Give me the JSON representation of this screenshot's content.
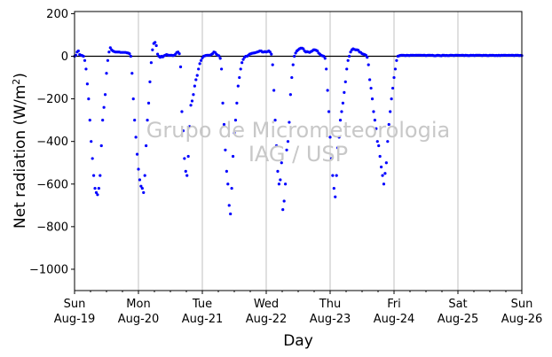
{
  "chart_data": {
    "type": "scatter",
    "title": "",
    "xlabel": "Day",
    "ylabel_main": "Net radiation (W/m",
    "ylabel_sup": "2",
    "ylabel_close": ")",
    "ylim": [
      -1100,
      210
    ],
    "xlim": [
      0,
      7
    ],
    "y_ticks": [
      200,
      0,
      -200,
      -400,
      -600,
      -800,
      -1000
    ],
    "y_tick_labels": [
      "200",
      "0",
      "−200",
      "−400",
      "−600",
      "−800",
      "−1000"
    ],
    "x_ticks": [
      {
        "x": 0,
        "day": "Sun",
        "date": "Aug-19"
      },
      {
        "x": 1,
        "day": "Mon",
        "date": "Aug-20"
      },
      {
        "x": 2,
        "day": "Tue",
        "date": "Aug-21"
      },
      {
        "x": 3,
        "day": "Wed",
        "date": "Aug-22"
      },
      {
        "x": 4,
        "day": "Thu",
        "date": "Aug-23"
      },
      {
        "x": 5,
        "day": "Fri",
        "date": "Aug-24"
      },
      {
        "x": 6,
        "day": "Sat",
        "date": "Aug-25"
      },
      {
        "x": 7,
        "day": "Sun",
        "date": "Aug-26"
      }
    ],
    "grid": "vertical",
    "zero_line": 0,
    "watermark": [
      "Grupo de Micrometeorologia",
      "IAG / USP"
    ],
    "marker_color": "#0000ff",
    "series": [
      {
        "x": [
          0.0,
          0.02,
          0.04,
          0.06,
          0.08,
          0.1,
          0.12,
          0.14,
          0.16,
          0.18,
          0.2,
          0.22,
          0.24,
          0.26,
          0.28,
          0.3,
          0.32,
          0.34,
          0.36,
          0.38,
          0.4,
          0.42,
          0.44,
          0.46,
          0.48,
          0.5,
          0.52,
          0.54,
          0.56,
          0.58,
          0.6,
          0.62,
          0.64,
          0.66,
          0.68,
          0.7,
          0.72,
          0.74,
          0.76,
          0.78,
          0.8,
          0.82,
          0.84,
          0.86,
          0.88,
          0.9,
          0.92,
          0.94,
          0.96,
          0.98,
          1.0,
          1.02,
          1.04,
          1.06,
          1.08,
          1.1,
          1.12,
          1.14,
          1.16,
          1.18,
          1.2,
          1.22,
          1.24,
          1.26,
          1.28,
          1.3,
          1.32,
          1.34,
          1.36,
          1.38,
          1.4,
          1.42,
          1.44,
          1.46,
          1.48,
          1.5,
          1.52,
          1.54,
          1.56,
          1.58,
          1.6,
          1.62,
          1.64,
          1.66,
          1.68,
          1.7,
          1.72,
          1.74,
          1.76,
          1.78,
          1.8,
          1.82,
          1.84,
          1.86,
          1.88,
          1.9,
          1.92,
          1.94,
          1.96,
          1.98,
          2.0,
          2.02,
          2.04,
          2.06,
          2.08,
          2.1,
          2.12,
          2.14,
          2.16,
          2.18,
          2.2,
          2.22,
          2.24,
          2.26,
          2.28,
          2.3,
          2.32,
          2.34,
          2.36,
          2.38,
          2.4,
          2.42,
          2.44,
          2.46,
          2.48,
          2.5,
          2.52,
          2.54,
          2.56,
          2.58,
          2.6,
          2.62,
          2.64,
          2.66,
          2.68,
          2.7,
          2.72,
          2.74,
          2.76,
          2.78,
          2.8,
          2.82,
          2.84,
          2.86,
          2.88,
          2.9,
          2.92,
          2.94,
          2.96,
          2.98,
          3.0,
          3.02,
          3.04,
          3.06,
          3.08,
          3.1,
          3.12,
          3.14,
          3.16,
          3.18,
          3.2,
          3.22,
          3.24,
          3.26,
          3.28,
          3.3,
          3.32,
          3.34,
          3.36,
          3.38,
          3.4,
          3.42,
          3.44,
          3.46,
          3.48,
          3.5,
          3.52,
          3.54,
          3.56,
          3.58,
          3.6,
          3.62,
          3.64,
          3.66,
          3.68,
          3.7,
          3.72,
          3.74,
          3.76,
          3.78,
          3.8,
          3.82,
          3.84,
          3.86,
          3.88,
          3.9,
          3.92,
          3.94,
          3.96,
          3.98,
          4.0,
          4.02,
          4.04,
          4.06,
          4.08,
          4.1,
          4.12,
          4.14,
          4.16,
          4.18,
          4.2,
          4.22,
          4.24,
          4.26,
          4.28,
          4.3,
          4.32,
          4.34,
          4.36,
          4.38,
          4.4,
          4.42,
          4.44,
          4.46,
          4.48,
          4.5,
          4.52,
          4.54,
          4.56,
          4.58,
          4.6,
          4.62,
          4.64,
          4.66,
          4.68,
          4.7,
          4.72,
          4.74,
          4.76,
          4.78,
          4.8,
          4.82,
          4.84,
          4.86,
          4.88,
          4.9,
          4.92,
          4.94,
          4.96,
          4.98,
          5.0,
          5.02,
          5.04,
          5.06,
          5.08,
          5.1,
          5.12,
          5.14,
          5.16,
          5.18,
          5.2,
          5.22,
          5.24,
          5.26,
          5.28,
          5.3,
          5.32,
          5.34,
          5.36,
          5.38,
          5.4,
          5.42,
          5.44,
          5.46,
          5.48,
          5.5,
          5.52,
          5.54,
          5.56,
          5.58,
          5.6,
          5.62,
          5.64,
          5.66,
          5.68,
          5.7,
          5.72,
          5.74,
          5.76,
          5.78,
          5.8,
          5.82,
          5.84,
          5.86,
          5.88,
          5.9,
          5.92,
          5.94,
          5.96,
          5.98,
          6.0,
          6.02,
          6.04,
          6.06,
          6.08,
          6.1,
          6.12,
          6.14,
          6.16,
          6.18,
          6.2,
          6.22,
          6.24,
          6.26,
          6.28,
          6.3,
          6.32,
          6.34,
          6.36,
          6.38,
          6.4,
          6.42,
          6.44,
          6.46,
          6.48,
          6.5,
          6.52,
          6.54,
          6.56,
          6.58,
          6.6,
          6.62,
          6.64,
          6.66,
          6.68,
          6.7,
          6.72,
          6.74,
          6.76,
          6.78,
          6.8,
          6.82,
          6.84,
          6.86,
          6.88,
          6.9,
          6.92,
          6.94,
          6.96,
          6.98,
          7.0
        ],
        "y": [
          0,
          5,
          20,
          25,
          8,
          5,
          3,
          0,
          -20,
          -60,
          -130,
          -200,
          -300,
          -400,
          -480,
          -560,
          -620,
          -640,
          -650,
          -620,
          -560,
          -420,
          -300,
          -240,
          -180,
          -80,
          -20,
          20,
          40,
          30,
          25,
          22,
          20,
          20,
          20,
          20,
          18,
          18,
          18,
          18,
          18,
          16,
          15,
          12,
          0,
          -80,
          -200,
          -300,
          -380,
          -460,
          -530,
          -580,
          -610,
          -620,
          -640,
          -560,
          -420,
          -300,
          -220,
          -120,
          -30,
          30,
          60,
          65,
          50,
          10,
          0,
          -5,
          0,
          -3,
          2,
          5,
          8,
          6,
          4,
          5,
          5,
          3,
          5,
          10,
          18,
          20,
          12,
          -50,
          -260,
          -350,
          -480,
          -540,
          -560,
          -470,
          -330,
          -230,
          -210,
          -180,
          -140,
          -110,
          -90,
          -60,
          -35,
          -20,
          -8,
          0,
          2,
          4,
          5,
          5,
          5,
          8,
          12,
          20,
          18,
          10,
          5,
          2,
          -10,
          -60,
          -220,
          -320,
          -440,
          -540,
          -600,
          -700,
          -740,
          -620,
          -470,
          -360,
          -300,
          -220,
          -140,
          -100,
          -60,
          -30,
          -15,
          -5,
          0,
          0,
          5,
          10,
          12,
          14,
          15,
          16,
          18,
          20,
          22,
          25,
          25,
          20,
          20,
          22,
          20,
          22,
          25,
          20,
          10,
          -40,
          -160,
          -300,
          -420,
          -540,
          -600,
          -580,
          -500,
          -720,
          -680,
          -600,
          -440,
          -400,
          -310,
          -180,
          -100,
          -40,
          0,
          15,
          25,
          30,
          35,
          38,
          38,
          35,
          25,
          20,
          22,
          20,
          18,
          22,
          25,
          30,
          30,
          28,
          25,
          15,
          10,
          5,
          2,
          0,
          -10,
          -60,
          -160,
          -260,
          -380,
          -480,
          -560,
          -620,
          -660,
          -560,
          -430,
          -380,
          -300,
          -260,
          -220,
          -170,
          -120,
          -60,
          -20,
          0,
          20,
          30,
          35,
          32,
          30,
          30,
          28,
          20,
          18,
          12,
          10,
          8,
          5,
          -5,
          -40,
          -110,
          -150,
          -200,
          -260,
          -300,
          -340,
          -400,
          -420,
          -470,
          -520,
          -560,
          -600,
          -550,
          -500,
          -400,
          -320,
          -260,
          -200,
          -150,
          -100,
          -60,
          -20,
          0,
          2,
          4,
          5,
          5,
          4,
          3,
          5,
          4,
          3,
          5,
          5,
          5,
          4,
          5,
          5,
          5,
          5,
          5,
          4,
          5,
          5,
          3,
          4,
          5,
          5,
          4,
          5,
          3,
          2,
          3,
          5,
          4,
          3,
          2,
          5,
          5,
          3,
          4,
          3,
          3,
          5,
          5,
          4,
          3,
          5,
          5,
          5,
          4,
          4,
          5,
          5,
          3,
          5,
          4,
          3,
          3,
          5,
          4,
          5,
          3,
          5,
          5,
          5,
          5,
          4,
          3,
          5,
          4,
          5,
          3,
          3,
          5,
          4,
          5,
          4,
          3,
          4,
          3,
          5,
          3,
          5,
          4,
          5,
          5,
          4,
          4,
          5,
          4,
          5,
          5,
          3,
          5,
          5,
          5,
          3,
          4,
          3
        ]
      }
    ]
  }
}
